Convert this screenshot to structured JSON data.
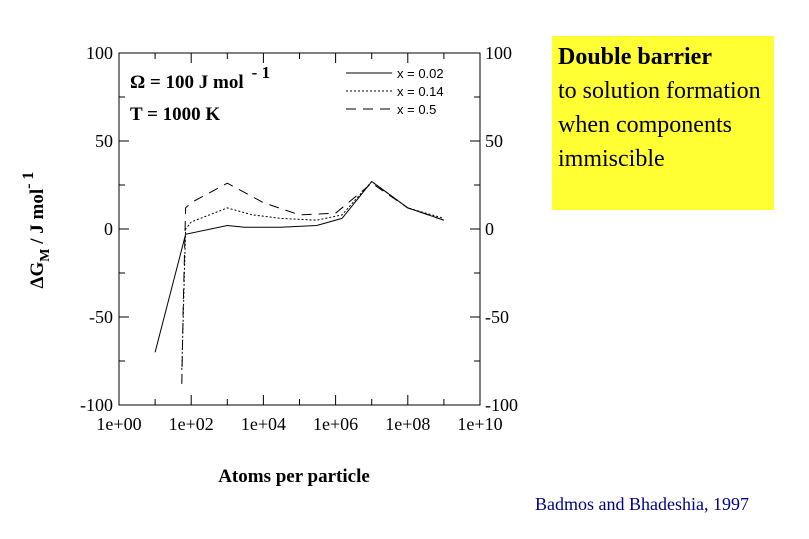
{
  "chart_data": {
    "type": "line",
    "title": "",
    "xlabel": "Atoms per particle",
    "ylabel": {
      "main": "ΔG",
      "sub": "M",
      "units": " / J mol",
      "sup": "- 1"
    },
    "xscale": "log",
    "xlim": [
      1,
      10000000000.0
    ],
    "ylim": [
      -100,
      100
    ],
    "x_tick_labels": [
      "1e+00",
      "1e+02",
      "1e+04",
      "1e+06",
      "1e+08",
      "1e+10"
    ],
    "y_tick_labels": [
      "100",
      "50",
      "0",
      "-50",
      "-100"
    ],
    "y_tick_values": [
      100,
      50,
      0,
      -50,
      -100
    ],
    "annotations": [
      {
        "text": "Ω = 100 J mol",
        "sup": "- 1"
      },
      {
        "text": "T = 1000 K"
      }
    ],
    "series": [
      {
        "name": "x = 0.02",
        "style": "solid",
        "x": [
          10,
          70,
          1000,
          3000,
          30000,
          300000,
          1500000,
          10000000,
          100000000,
          1000000000
        ],
        "y": [
          -70,
          -3,
          2,
          1,
          1,
          2,
          6,
          27,
          12,
          5
        ]
      },
      {
        "name": "x = 0.14",
        "style": "dotted",
        "x": [
          55,
          70,
          100,
          1000,
          5000,
          30000,
          300000,
          1500000,
          10000000,
          100000000,
          1000000000
        ],
        "y": [
          -80,
          0,
          4,
          12,
          8,
          6,
          5,
          8,
          27,
          12,
          6
        ]
      },
      {
        "name": "x = 0.5",
        "style": "dashed",
        "x": [
          55,
          60,
          70,
          100,
          1000,
          10000,
          100000,
          1000000,
          10000000,
          100000000,
          1000000000
        ],
        "y": [
          -88,
          -45,
          12,
          15,
          26,
          15,
          8,
          9,
          26,
          12,
          5
        ]
      }
    ]
  },
  "callout": {
    "headline": "Double barrier",
    "body": "to solution formation when components immiscible"
  },
  "citation": "Badmos and Bhadeshia, 1997",
  "colors": {
    "callout_bg": "#ffff33",
    "citation": "#000080"
  }
}
